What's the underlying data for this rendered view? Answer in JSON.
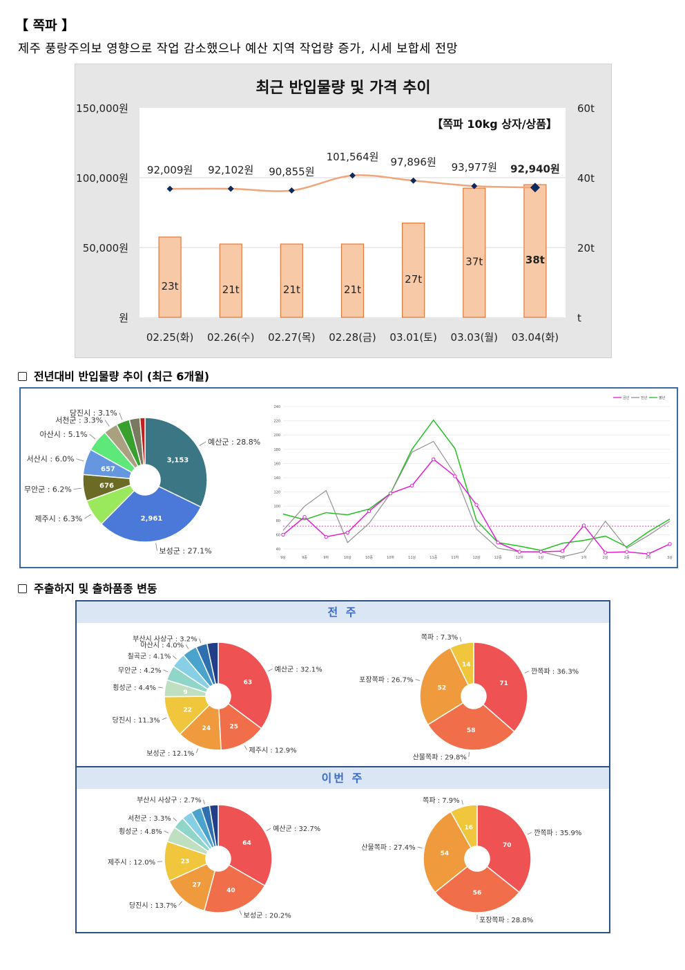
{
  "section": {
    "title": "【 쪽파 】",
    "summary": "제주 풍랑주의보 영향으로 작업 감소했으나 예산 지역 작업량 증가, 시세 보합세 전망"
  },
  "main_chart": {
    "title": "최근 반입물량 및 가격 추이",
    "unit_label": "【쪽파 10kg 상자/상품】",
    "left_axis_ticks": [
      "원",
      "50,000원",
      "100,000원",
      "150,000원"
    ],
    "right_axis_ticks": [
      "t",
      "20t",
      "40t",
      "60t"
    ]
  },
  "section2": {
    "heading": "전년대비 반입물량 추이 (최근 6개월)"
  },
  "section3": {
    "heading": "주출하지 및 출하품종 변동",
    "band_prev": "전 주",
    "band_this": "이번 주"
  },
  "colors": {
    "bar_fill": "#f8c9a6",
    "bar_stroke": "#e0783c",
    "price_line": "#f2a47a",
    "price_marker": "#0e2a5c",
    "this_year": "#e020d0",
    "last_year": "#909090",
    "avg_year": "#22c022"
  },
  "chart_data": [
    {
      "type": "bar",
      "title": "최근 반입물량 및 가격 추이",
      "categories": [
        "02.25(화)",
        "02.26(수)",
        "02.27(목)",
        "02.28(금)",
        "03.01(토)",
        "03.03(월)",
        "03.04(화)"
      ],
      "series": [
        {
          "name": "반입물량",
          "axis": "right",
          "values": [
            23,
            21,
            21,
            21,
            27,
            37,
            38
          ],
          "labels": [
            "23t",
            "21t",
            "21t",
            "21t",
            "27t",
            "37t",
            "38t"
          ]
        },
        {
          "name": "가격",
          "axis": "left",
          "type": "line",
          "values": [
            92009,
            92102,
            90855,
            101564,
            97896,
            93977,
            92940
          ],
          "labels": [
            "92,009원",
            "92,102원",
            "90,855원",
            "101,564원",
            "97,896원",
            "93,977원",
            "92,940원"
          ]
        }
      ],
      "ylim_left": [
        0,
        150000
      ],
      "ylim_right": [
        0,
        60
      ],
      "annotation": "【쪽파 10kg 상자/상품】"
    },
    {
      "type": "pie",
      "slices": [
        {
          "label": "예산군 : 28.8%",
          "value": 3153,
          "value_label": "3,153",
          "color": "#3a7683"
        },
        {
          "label": "보성군 : 27.1%",
          "value": 2961,
          "value_label": "2,961",
          "color": "#4a79d9"
        },
        {
          "label": "제주시 : 6.3%",
          "value": 690,
          "value_label": "",
          "color": "#9ae85c"
        },
        {
          "label": "무안군 : 6.2%",
          "value": 676,
          "value_label": "676",
          "color": "#6b6b26"
        },
        {
          "label": "서산시 : 6.0%",
          "value": 657,
          "value_label": "657",
          "color": "#6497e0"
        },
        {
          "label": "아산시 : 5.1%",
          "value": 558,
          "value_label": "",
          "color": "#5fe87a"
        },
        {
          "label": "서천군 : 3.3%",
          "value": 361,
          "value_label": "",
          "color": "#a9a080"
        },
        {
          "label": "당진시 : 3.1%",
          "value": 339,
          "value_label": "",
          "color": "#37a02e"
        },
        {
          "label": "",
          "value": 270,
          "value_label": "",
          "color": "#7a7a60"
        },
        {
          "label": "",
          "value": 130,
          "value_label": "",
          "color": "#c02020"
        }
      ]
    },
    {
      "type": "line",
      "x": [
        "9상",
        "9중",
        "9하",
        "10상",
        "10중",
        "10하",
        "11상",
        "11중",
        "11하",
        "12상",
        "12중",
        "12하",
        "1상",
        "1중",
        "1하",
        "2상",
        "2중",
        "2하",
        "3상"
      ],
      "ylim": [
        40,
        240
      ],
      "yticks": [
        40,
        60,
        80,
        100,
        120,
        140,
        160,
        180,
        200,
        220,
        240
      ],
      "reference_line": 72,
      "legend": [
        "금년",
        "전년",
        "평년"
      ],
      "series": [
        {
          "name": "금년",
          "values": [
            60,
            85,
            57,
            63,
            93,
            118,
            129,
            166,
            142,
            102,
            49,
            36,
            36,
            37,
            73,
            35,
            36,
            33,
            47
          ]
        },
        {
          "name": "전년",
          "values": [
            66,
            100,
            122,
            49,
            76,
            118,
            176,
            191,
            145,
            68,
            41,
            36,
            36,
            29,
            36,
            79,
            41,
            59,
            79
          ]
        },
        {
          "name": "평년",
          "values": [
            89,
            81,
            91,
            88,
            96,
            118,
            180,
            221,
            181,
            80,
            49,
            44,
            38,
            48,
            52,
            58,
            43,
            64,
            82
          ]
        }
      ]
    },
    {
      "type": "pie",
      "period": "전 주",
      "slices": [
        {
          "label": "예산군 : 32.1%",
          "value": 63,
          "value_label": "63",
          "color": "#ef5252"
        },
        {
          "label": "제주시 : 12.9%",
          "value": 25,
          "value_label": "25",
          "color": "#f06e4a"
        },
        {
          "label": "보성군 : 12.1%",
          "value": 24,
          "value_label": "24",
          "color": "#ef9a3c"
        },
        {
          "label": "당진시 : 11.3%",
          "value": 22,
          "value_label": "22",
          "color": "#f0c63c"
        },
        {
          "label": "횡성군 : 4.4%",
          "value": 9,
          "value_label": "9",
          "color": "#bfe0c0"
        },
        {
          "label": "무안군 : 4.2%",
          "value": 8,
          "value_label": "",
          "color": "#8fd6c8"
        },
        {
          "label": "칠곡군 : 4.1%",
          "value": 8,
          "value_label": "",
          "color": "#86cfe4"
        },
        {
          "label": "아산시 : 4.0%",
          "value": 8,
          "value_label": "",
          "color": "#4aa3cc"
        },
        {
          "label": "부산시 사상구 : 3.2%",
          "value": 6,
          "value_label": "",
          "color": "#2e6fb0"
        },
        {
          "label": "",
          "value": 6,
          "value_label": "",
          "color": "#213e86"
        }
      ]
    },
    {
      "type": "pie",
      "period": "전 주",
      "slices": [
        {
          "label": "깐쪽파 : 36.3%",
          "value": 71,
          "value_label": "71",
          "color": "#ef5252"
        },
        {
          "label": "산물쪽파 : 29.8%",
          "value": 58,
          "value_label": "58",
          "color": "#f06e4a"
        },
        {
          "label": "포장쪽파 : 26.7%",
          "value": 52,
          "value_label": "52",
          "color": "#ef9a3c"
        },
        {
          "label": "쪽파 : 7.3%",
          "value": 14,
          "value_label": "14",
          "color": "#f0c63c"
        }
      ]
    },
    {
      "type": "pie",
      "period": "이번 주",
      "slices": [
        {
          "label": "예산군 : 32.7%",
          "value": 64,
          "value_label": "64",
          "color": "#ef5252"
        },
        {
          "label": "보성군 : 20.2%",
          "value": 40,
          "value_label": "40",
          "color": "#f06e4a"
        },
        {
          "label": "당진시 : 13.7%",
          "value": 27,
          "value_label": "27",
          "color": "#ef9a3c"
        },
        {
          "label": "제주시 : 12.0%",
          "value": 23,
          "value_label": "23",
          "color": "#f0c63c"
        },
        {
          "label": "횡성군 : 4.8%",
          "value": 9,
          "value_label": "",
          "color": "#bfe0c0"
        },
        {
          "label": "서천군 : 3.3%",
          "value": 7,
          "value_label": "",
          "color": "#8fd6c8"
        },
        {
          "label": "",
          "value": 6,
          "value_label": "",
          "color": "#86cfe4"
        },
        {
          "label": "",
          "value": 6,
          "value_label": "",
          "color": "#4aa3cc"
        },
        {
          "label": "부산시 사상구 : 2.7%",
          "value": 5,
          "value_label": "",
          "color": "#2e6fb0"
        },
        {
          "label": "",
          "value": 5,
          "value_label": "",
          "color": "#213e86"
        }
      ]
    },
    {
      "type": "pie",
      "period": "이번 주",
      "slices": [
        {
          "label": "깐쪽파 : 35.9%",
          "value": 70,
          "value_label": "70",
          "color": "#ef5252"
        },
        {
          "label": "포장쪽파 : 28.8%",
          "value": 56,
          "value_label": "56",
          "color": "#f06e4a"
        },
        {
          "label": "산물쪽파 : 27.4%",
          "value": 54,
          "value_label": "54",
          "color": "#ef9a3c"
        },
        {
          "label": "쪽파 : 7.9%",
          "value": 16,
          "value_label": "16",
          "color": "#f0c63c"
        }
      ]
    }
  ]
}
